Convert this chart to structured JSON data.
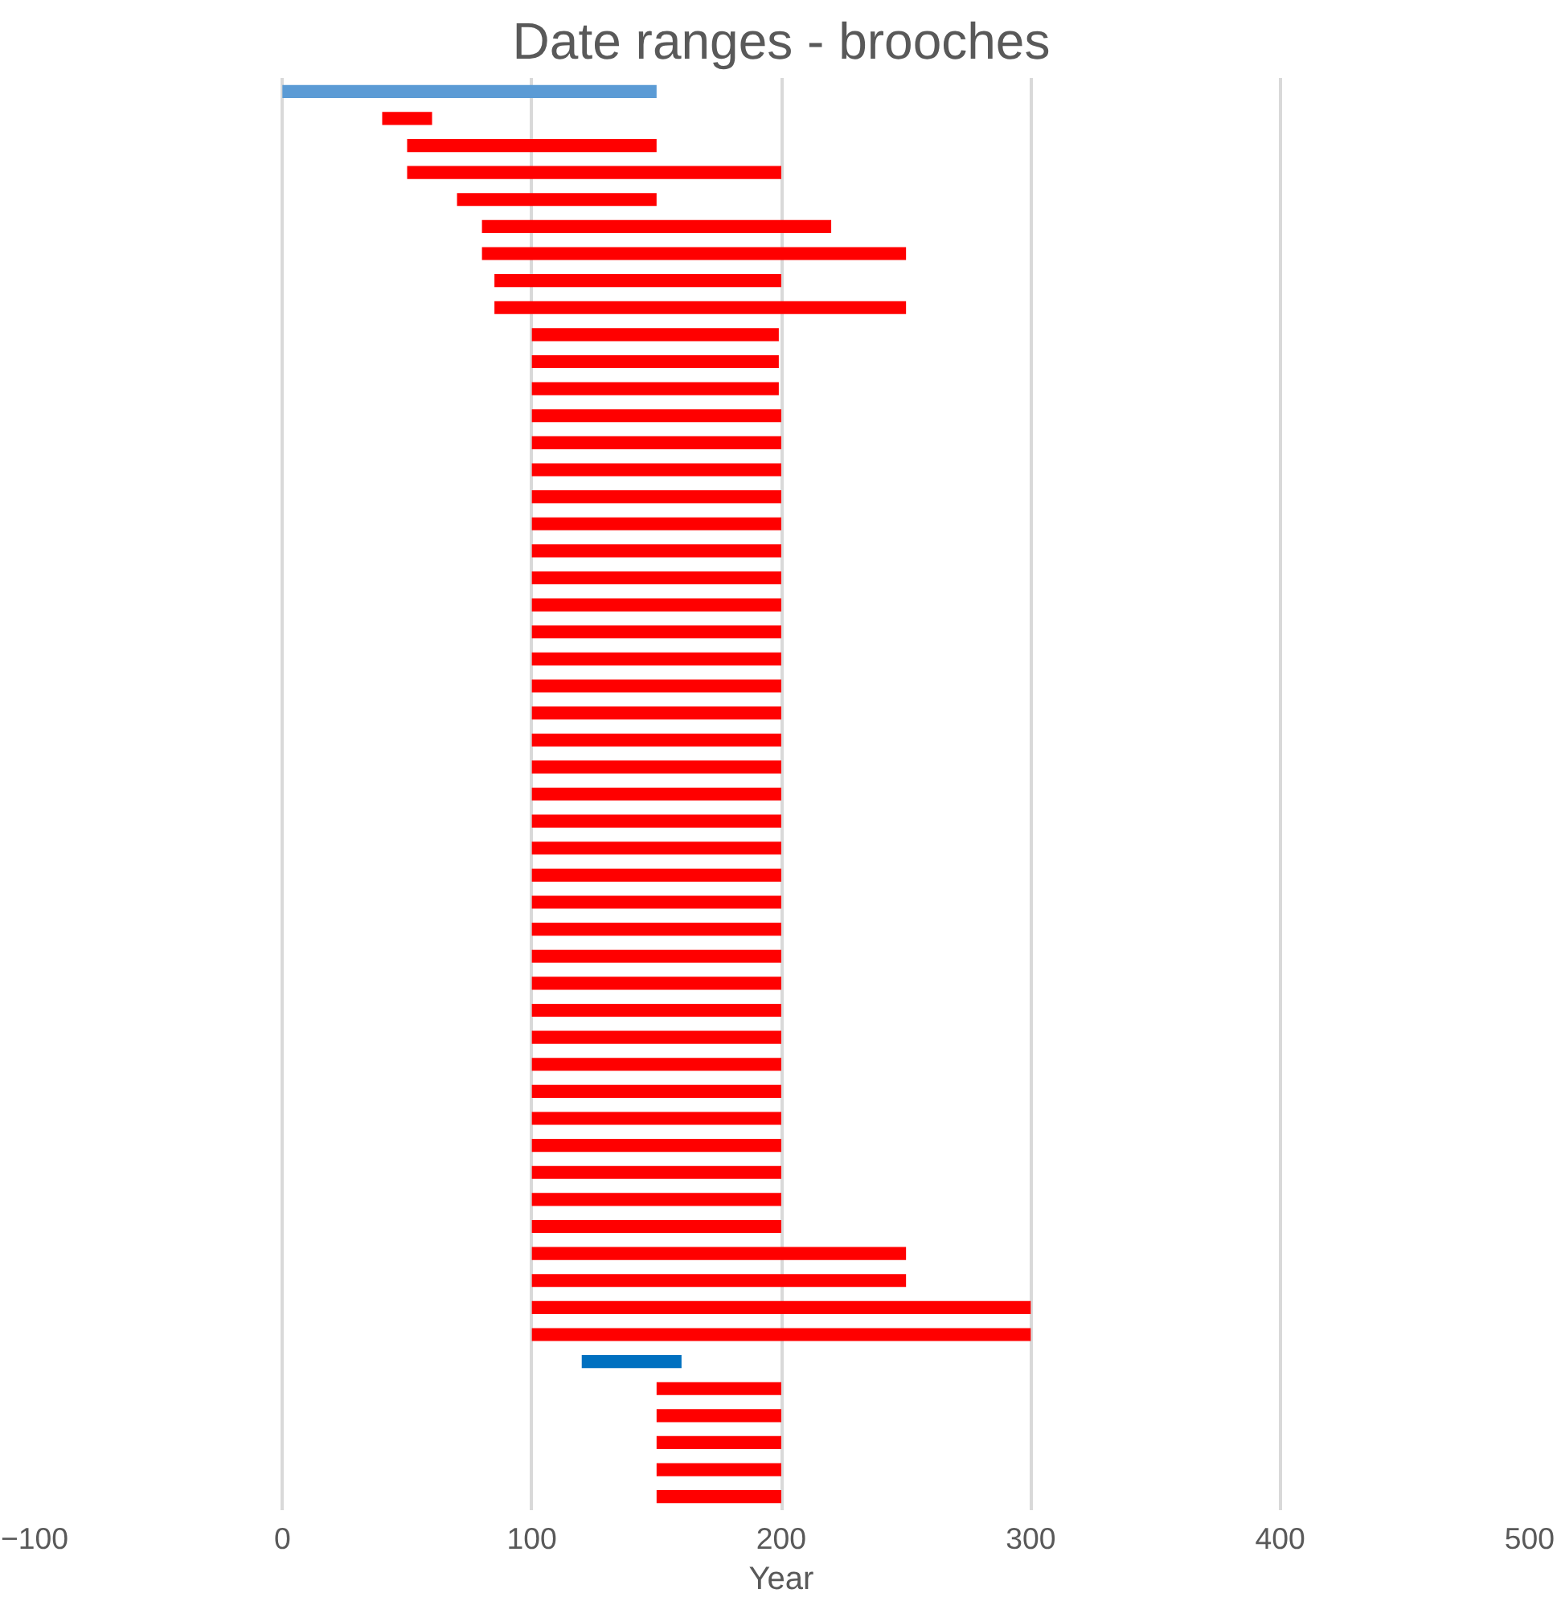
{
  "chart_data": {
    "type": "bar",
    "orientation": "horizontal",
    "title": "Date ranges - brooches",
    "xlabel": "Year",
    "categories": [
      null,
      null,
      null,
      null,
      null,
      null,
      null,
      null,
      null,
      null,
      null,
      null,
      null,
      null,
      null,
      null,
      null,
      null,
      null,
      null,
      null,
      null,
      null,
      null,
      null,
      null,
      null,
      null,
      null,
      null,
      null,
      null,
      null,
      null,
      null,
      null,
      null,
      null,
      null,
      null,
      null,
      null,
      null,
      null,
      null,
      null,
      null,
      null,
      null,
      null,
      null,
      null,
      null
    ],
    "base": [
      0,
      40,
      50,
      50,
      70,
      80,
      80,
      85,
      85,
      100,
      100,
      100,
      100,
      100,
      100,
      100,
      100,
      100,
      100,
      100,
      100,
      100,
      100,
      100,
      100,
      100,
      100,
      100,
      100,
      100,
      100,
      100,
      100,
      100,
      100,
      100,
      100,
      100,
      100,
      100,
      100,
      100,
      100,
      100,
      100,
      100,
      100,
      120,
      150,
      150,
      150,
      150,
      150
    ],
    "values": [
      150,
      20,
      100,
      150,
      80,
      140,
      170,
      115,
      165,
      99,
      99,
      99,
      100,
      100,
      100,
      100,
      100,
      100,
      100,
      100,
      100,
      100,
      100,
      100,
      100,
      100,
      100,
      100,
      100,
      100,
      100,
      100,
      100,
      100,
      100,
      100,
      100,
      100,
      100,
      100,
      100,
      100,
      100,
      150,
      150,
      200,
      200,
      40,
      50,
      50,
      50,
      50,
      50
    ],
    "colors": [
      "#5b9bd5",
      "#ff0000",
      "#ff0000",
      "#ff0000",
      "#ff0000",
      "#ff0000",
      "#ff0000",
      "#ff0000",
      "#ff0000",
      "#ff0000",
      "#ff0000",
      "#ff0000",
      "#ff0000",
      "#ff0000",
      "#ff0000",
      "#ff0000",
      "#ff0000",
      "#ff0000",
      "#ff0000",
      "#ff0000",
      "#ff0000",
      "#ff0000",
      "#ff0000",
      "#ff0000",
      "#ff0000",
      "#ff0000",
      "#ff0000",
      "#ff0000",
      "#ff0000",
      "#ff0000",
      "#ff0000",
      "#ff0000",
      "#ff0000",
      "#ff0000",
      "#ff0000",
      "#ff0000",
      "#ff0000",
      "#ff0000",
      "#ff0000",
      "#ff0000",
      "#ff0000",
      "#ff0000",
      "#ff0000",
      "#ff0000",
      "#ff0000",
      "#ff0000",
      "#ff0000",
      "#0070c0",
      "#ff0000",
      "#ff0000",
      "#ff0000",
      "#ff0000",
      "#ff0000"
    ],
    "xlim": [
      -100,
      500
    ],
    "xticks": [
      -100,
      0,
      100,
      200,
      300,
      400,
      500
    ],
    "grid": "x"
  }
}
